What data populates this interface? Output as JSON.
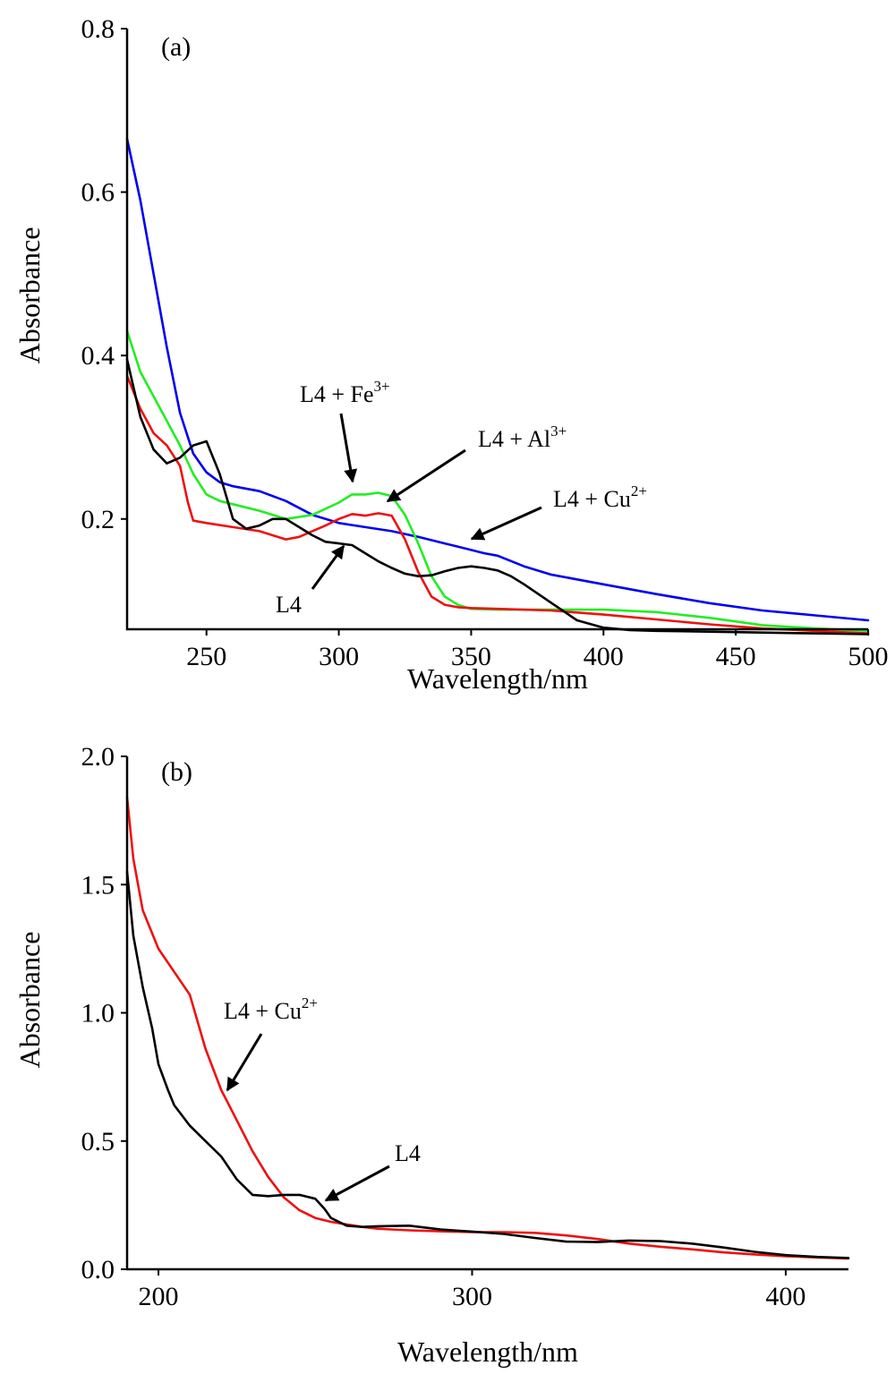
{
  "chart_data": [
    {
      "type": "line",
      "panel_label": "(a)",
      "xlabel": "Wavelength/nm",
      "ylabel": "Absorbance",
      "xlim": [
        220,
        500
      ],
      "ylim": [
        0.065,
        0.8
      ],
      "xticks": [
        250,
        300,
        350,
        400,
        450,
        500
      ],
      "yticks": [
        0.2,
        0.4,
        0.6,
        0.8
      ],
      "ytick_labels": [
        "0.2",
        "0.4",
        "0.6",
        "0.8"
      ],
      "grid": false,
      "series": [
        {
          "name": "L4 + Cu",
          "color": "#0000ee",
          "x": [
            220,
            225,
            230,
            235,
            240,
            245,
            250,
            255,
            260,
            270,
            280,
            290,
            300,
            310,
            320,
            330,
            340,
            350,
            355,
            360,
            370,
            380,
            390,
            400,
            420,
            440,
            460,
            480,
            500
          ],
          "y": [
            0.665,
            0.59,
            0.5,
            0.41,
            0.33,
            0.28,
            0.257,
            0.245,
            0.24,
            0.234,
            0.222,
            0.205,
            0.195,
            0.19,
            0.185,
            0.178,
            0.17,
            0.162,
            0.158,
            0.155,
            0.142,
            0.132,
            0.126,
            0.12,
            0.108,
            0.097,
            0.088,
            0.082,
            0.076
          ]
        },
        {
          "name": "L4 + Fe",
          "color": "#22ee22",
          "x": [
            220,
            225,
            230,
            235,
            240,
            245,
            250,
            255,
            260,
            270,
            280,
            290,
            300,
            305,
            310,
            315,
            320,
            325,
            330,
            335,
            340,
            345,
            350,
            360,
            380,
            400,
            420,
            440,
            460,
            480,
            500
          ],
          "y": [
            0.43,
            0.38,
            0.35,
            0.32,
            0.29,
            0.255,
            0.23,
            0.222,
            0.218,
            0.21,
            0.2,
            0.205,
            0.22,
            0.23,
            0.23,
            0.232,
            0.228,
            0.205,
            0.17,
            0.13,
            0.105,
            0.095,
            0.09,
            0.089,
            0.089,
            0.089,
            0.086,
            0.079,
            0.07,
            0.066,
            0.063
          ]
        },
        {
          "name": "L4 + Al",
          "color": "#ee1111",
          "x": [
            220,
            225,
            230,
            235,
            240,
            243,
            245,
            250,
            260,
            270,
            275,
            280,
            285,
            290,
            295,
            300,
            305,
            310,
            315,
            320,
            325,
            330,
            335,
            340,
            345,
            350,
            360,
            380,
            400,
            420,
            440,
            460,
            480,
            500
          ],
          "y": [
            0.375,
            0.335,
            0.305,
            0.29,
            0.265,
            0.22,
            0.198,
            0.195,
            0.19,
            0.185,
            0.18,
            0.175,
            0.178,
            0.185,
            0.192,
            0.2,
            0.206,
            0.204,
            0.207,
            0.204,
            0.175,
            0.135,
            0.105,
            0.095,
            0.092,
            0.091,
            0.09,
            0.088,
            0.083,
            0.077,
            0.071,
            0.066,
            0.063,
            0.06
          ]
        },
        {
          "name": "L4",
          "color": "#000000",
          "x": [
            220,
            225,
            230,
            235,
            240,
            245,
            250,
            255,
            260,
            265,
            270,
            275,
            280,
            285,
            290,
            295,
            300,
            305,
            310,
            315,
            320,
            325,
            330,
            335,
            340,
            345,
            350,
            355,
            360,
            365,
            370,
            380,
            390,
            400,
            410,
            420,
            440,
            460,
            480,
            500
          ],
          "y": [
            0.395,
            0.325,
            0.285,
            0.268,
            0.275,
            0.29,
            0.295,
            0.255,
            0.2,
            0.188,
            0.192,
            0.2,
            0.2,
            0.19,
            0.18,
            0.172,
            0.17,
            0.168,
            0.158,
            0.148,
            0.14,
            0.133,
            0.13,
            0.131,
            0.136,
            0.14,
            0.142,
            0.14,
            0.137,
            0.13,
            0.12,
            0.098,
            0.076,
            0.067,
            0.064,
            0.063,
            0.062,
            0.061,
            0.06,
            0.059
          ]
        }
      ],
      "annotations": [
        {
          "base": "L4 + Fe",
          "sup": "3+"
        },
        {
          "base": "L4 + Al",
          "sup": "3+"
        },
        {
          "base": "L4 + Cu",
          "sup": "2+"
        },
        {
          "base": "L4",
          "sup": ""
        }
      ]
    },
    {
      "type": "line",
      "panel_label": "(b)",
      "xlabel": "Wavelength/nm",
      "ylabel": "Absorbance",
      "xlim": [
        190,
        420
      ],
      "ylim": [
        0.0,
        2.0
      ],
      "xticks": [
        200,
        300,
        400
      ],
      "yticks": [
        0.0,
        0.5,
        1.0,
        1.5,
        2.0
      ],
      "ytick_labels": [
        "0.0",
        "0.5",
        "1.0",
        "1.5",
        "2.0"
      ],
      "grid": false,
      "series": [
        {
          "name": "L4 + Cu",
          "color": "#ee1111",
          "x": [
            190,
            192,
            195,
            200,
            205,
            210,
            215,
            220,
            225,
            230,
            235,
            240,
            245,
            250,
            255,
            260,
            265,
            270,
            280,
            290,
            300,
            310,
            320,
            330,
            340,
            350,
            360,
            370,
            380,
            390,
            400,
            410,
            420
          ],
          "y": [
            1.84,
            1.6,
            1.4,
            1.25,
            1.16,
            1.07,
            0.86,
            0.7,
            0.58,
            0.46,
            0.36,
            0.28,
            0.23,
            0.2,
            0.185,
            0.175,
            0.165,
            0.158,
            0.152,
            0.148,
            0.145,
            0.145,
            0.142,
            0.132,
            0.118,
            0.1,
            0.088,
            0.078,
            0.066,
            0.058,
            0.051,
            0.046,
            0.042
          ]
        },
        {
          "name": "L4",
          "color": "#000000",
          "x": [
            190,
            192,
            195,
            198,
            200,
            203,
            205,
            210,
            215,
            220,
            225,
            230,
            235,
            240,
            245,
            250,
            253,
            255,
            260,
            265,
            270,
            280,
            290,
            300,
            310,
            320,
            330,
            340,
            350,
            360,
            370,
            380,
            390,
            400,
            410,
            420
          ],
          "y": [
            1.55,
            1.3,
            1.1,
            0.94,
            0.8,
            0.7,
            0.64,
            0.56,
            0.5,
            0.44,
            0.35,
            0.29,
            0.285,
            0.29,
            0.29,
            0.275,
            0.235,
            0.2,
            0.17,
            0.165,
            0.168,
            0.17,
            0.155,
            0.147,
            0.138,
            0.122,
            0.108,
            0.106,
            0.112,
            0.11,
            0.1,
            0.085,
            0.068,
            0.055,
            0.048,
            0.044
          ]
        }
      ],
      "annotations": [
        {
          "base": "L4 + Cu",
          "sup": "2+"
        },
        {
          "base": "L4",
          "sup": ""
        }
      ]
    }
  ]
}
